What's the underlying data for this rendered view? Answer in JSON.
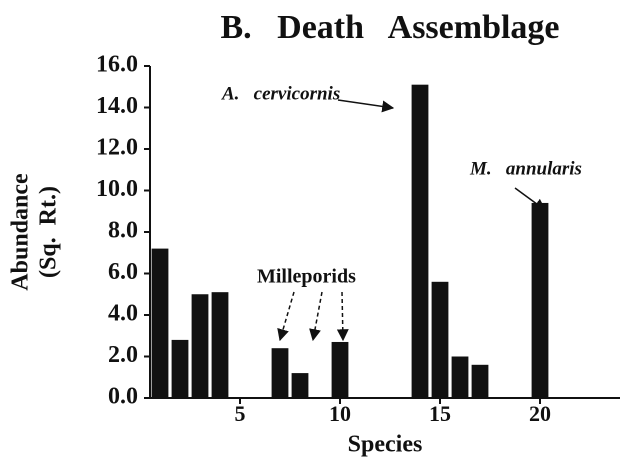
{
  "chart_data": {
    "type": "bar",
    "title": "B.   Death   Assemblage",
    "y_label": [
      "Abundance",
      "(Sq.  Rt.)"
    ],
    "x_label": "Species",
    "annotations": [
      "A.   cervicornis",
      "M.   annularis",
      "Milleporids"
    ],
    "x": [
      1,
      2,
      3,
      4,
      7,
      8,
      10,
      14,
      15,
      16,
      17,
      20
    ],
    "values": [
      7.2,
      2.8,
      5.0,
      5.1,
      2.4,
      1.2,
      2.7,
      15.1,
      5.6,
      2.0,
      1.6,
      9.4
    ],
    "color": "#111111",
    "xlim": [
      0.5,
      24
    ],
    "xticks": [
      5,
      10,
      15,
      20
    ],
    "ylim": [
      0,
      16
    ],
    "yticks": [
      {
        "value": 0,
        "label": "0.0"
      },
      {
        "value": 2,
        "label": "2.0"
      },
      {
        "value": 4,
        "label": "4.0"
      },
      {
        "value": 6,
        "label": "6.0"
      },
      {
        "value": 8,
        "label": "8.0"
      },
      {
        "value": 10,
        "label": "10.0"
      },
      {
        "value": 12,
        "label": "12.0"
      },
      {
        "value": 14,
        "label": "14.0"
      },
      {
        "value": 16,
        "label": "16.0"
      }
    ]
  }
}
